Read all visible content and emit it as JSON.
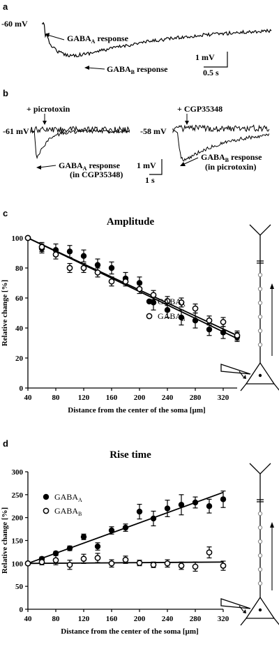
{
  "panel_a": {
    "letter": "a",
    "voltage": "-60 mV",
    "gabaa_label": "GABA",
    "gabaa_sub": "A",
    "gabab_label": "GABA",
    "gabab_sub": "B",
    "response_word": "response",
    "scale_v": "1 mV",
    "scale_t": "0.5 s"
  },
  "panel_b": {
    "letter": "b",
    "left_drug": "+ picrotoxin",
    "left_voltage": "-61 mV",
    "left_resp_prefix": "GABA",
    "left_resp_sub": "A",
    "left_resp_suffix": " response",
    "left_resp_note": "(in CGP35348)",
    "right_drug": "+ CGP35348",
    "right_voltage": "-58 mV",
    "right_resp_prefix": "GABA",
    "right_resp_sub": "B",
    "right_resp_suffix": " response",
    "right_resp_note": "(in picrotoxin)",
    "scale_v": "1 mV",
    "scale_t": "1 s"
  },
  "chart_data": [
    {
      "type": "scatter",
      "panel": "c",
      "title": "Amplitude",
      "xlabel": "Distance from the center of the soma [µm]",
      "ylabel": "Relative change [%]",
      "xlim": [
        40,
        340
      ],
      "ylim": [
        0,
        100
      ],
      "xticks": [
        "40",
        "80",
        "120",
        "160",
        "200",
        "240",
        "280",
        "320"
      ],
      "yticks": [
        "0",
        "20",
        "40",
        "60",
        "80",
        "100"
      ],
      "legend_position": "right",
      "series": [
        {
          "name": "GABA",
          "name_sub": "A",
          "marker": "filled",
          "x": [
            40,
            60,
            80,
            100,
            120,
            140,
            160,
            180,
            200,
            220,
            240,
            260,
            280,
            300,
            320,
            340
          ],
          "y": [
            100,
            93,
            92,
            91,
            88,
            82,
            80,
            73,
            70,
            57,
            52,
            47,
            45,
            39,
            37,
            34
          ],
          "err": [
            0,
            3,
            4,
            4,
            4,
            4,
            4,
            4,
            4,
            5,
            5,
            5,
            5,
            4,
            4,
            3
          ]
        },
        {
          "name": "GABA",
          "name_sub": "B",
          "marker": "open",
          "x": [
            40,
            60,
            80,
            100,
            120,
            140,
            160,
            180,
            200,
            220,
            240,
            260,
            280,
            300,
            320,
            340
          ],
          "y": [
            100,
            94,
            89,
            80,
            80,
            77,
            71,
            71,
            66,
            62,
            58,
            57,
            53,
            45,
            44,
            35
          ],
          "err": [
            0,
            3,
            3,
            3,
            3,
            3,
            3,
            3,
            3,
            3,
            3,
            3,
            3,
            3,
            3,
            3
          ]
        }
      ],
      "fit_lines": [
        {
          "x": [
            40,
            340
          ],
          "y": [
            100,
            33
          ]
        },
        {
          "x": [
            40,
            340
          ],
          "y": [
            100,
            35
          ]
        }
      ]
    },
    {
      "type": "scatter",
      "panel": "d",
      "title": "Rise time",
      "xlabel": "Distance from the center of the soma [µm]",
      "ylabel": "Relative change [%]",
      "xlim": [
        40,
        320
      ],
      "ylim": [
        0,
        300
      ],
      "xticks": [
        "40",
        "80",
        "120",
        "160",
        "200",
        "240",
        "280",
        "320"
      ],
      "yticks": [
        "0",
        "50",
        "100",
        "150",
        "200",
        "250",
        "300"
      ],
      "legend_position": "top-left",
      "series": [
        {
          "name": "GABA",
          "name_sub": "A",
          "marker": "filled",
          "x": [
            40,
            60,
            80,
            100,
            120,
            140,
            160,
            180,
            200,
            220,
            240,
            260,
            280,
            300,
            320
          ],
          "y": [
            100,
            110,
            122,
            133,
            158,
            137,
            172,
            178,
            213,
            198,
            220,
            228,
            233,
            225,
            240
          ],
          "err": [
            0,
            4,
            4,
            5,
            6,
            8,
            8,
            8,
            16,
            16,
            18,
            22,
            12,
            15,
            18
          ]
        },
        {
          "name": "GABA",
          "name_sub": "B",
          "marker": "open",
          "x": [
            40,
            60,
            80,
            100,
            120,
            140,
            160,
            180,
            200,
            220,
            240,
            260,
            280,
            300,
            320
          ],
          "y": [
            100,
            103,
            107,
            97,
            110,
            112,
            100,
            108,
            101,
            97,
            100,
            95,
            93,
            124,
            95
          ],
          "err": [
            0,
            6,
            10,
            10,
            10,
            10,
            8,
            8,
            6,
            6,
            8,
            8,
            10,
            12,
            10
          ]
        }
      ],
      "fit_lines": [
        {
          "x": [
            40,
            320
          ],
          "y": [
            100,
            255
          ]
        },
        {
          "x": [
            40,
            320
          ],
          "y": [
            100,
            103
          ]
        }
      ]
    }
  ]
}
